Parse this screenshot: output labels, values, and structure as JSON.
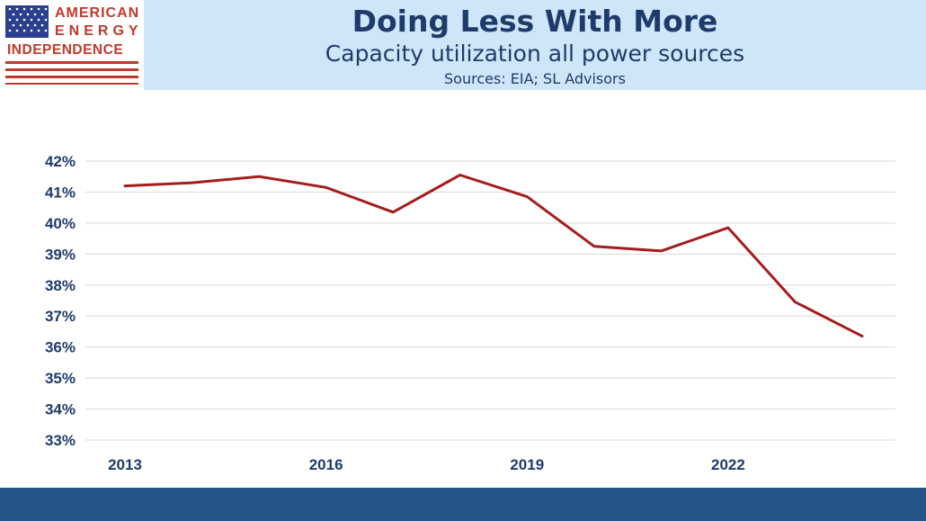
{
  "header": {
    "title": "Doing Less With More",
    "subtitle": "Capacity utilization all power sources",
    "sources": "Sources: EIA; SL Advisors"
  },
  "logo": {
    "line1": "AMERICAN",
    "line2": "ENERGY",
    "line3": "INDEPENDENCE"
  },
  "colors": {
    "line": "#a61c1c",
    "header_band": "#cfe6f8",
    "text": "#1f3b6b",
    "footer": "#24548a"
  },
  "chart_data": {
    "type": "line",
    "title": "Doing Less With More",
    "subtitle": "Capacity utilization all power sources",
    "xlabel": "",
    "ylabel": "",
    "x": [
      2013,
      2014,
      2015,
      2016,
      2017,
      2018,
      2019,
      2020,
      2021,
      2022,
      2023,
      2024
    ],
    "x_tick_labels": [
      "2013",
      "2016",
      "2019",
      "2022"
    ],
    "y_tick_labels": [
      "42%",
      "41%",
      "40%",
      "39%",
      "38%",
      "37%",
      "36%",
      "35%",
      "34%",
      "33%"
    ],
    "ylim": [
      33,
      42
    ],
    "grid": true,
    "series": [
      {
        "values": [
          41.2,
          41.3,
          41.5,
          41.15,
          40.35,
          41.55,
          40.85,
          39.25,
          39.1,
          39.85,
          37.45,
          36.35
        ]
      }
    ]
  }
}
